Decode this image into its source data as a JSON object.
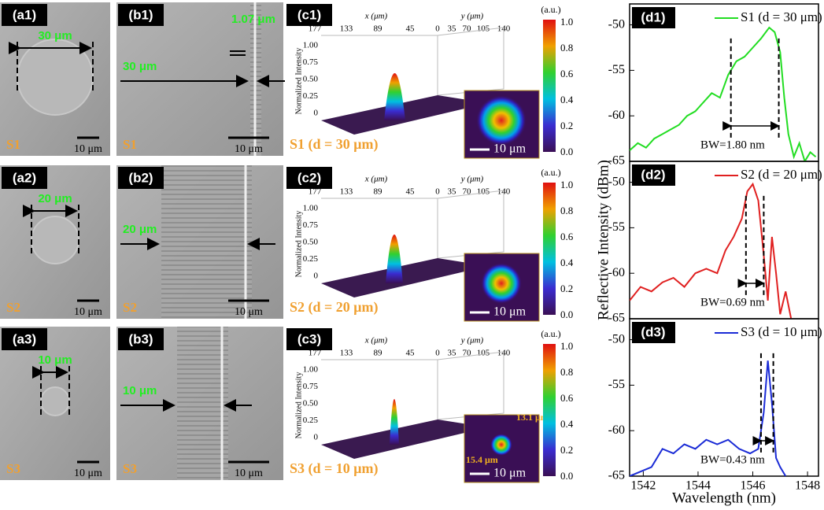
{
  "panels_a": [
    {
      "label": "(a1)",
      "size": "30 μm",
      "sample": "S1",
      "scale": "10 μm"
    },
    {
      "label": "(a2)",
      "size": "20 μm",
      "sample": "S2",
      "scale": "10 μm"
    },
    {
      "label": "(a3)",
      "size": "10 μm",
      "sample": "S3",
      "scale": "10 μm"
    }
  ],
  "panels_b": [
    {
      "label": "(b1)",
      "size": "30 μm",
      "sample": "S1",
      "scale": "10 μm",
      "period": "1.07 μm"
    },
    {
      "label": "(b2)",
      "size": "20 μm",
      "sample": "S2",
      "scale": "10 μm"
    },
    {
      "label": "(b3)",
      "size": "10 μm",
      "sample": "S3",
      "scale": "10 μm"
    }
  ],
  "panels_c": [
    {
      "label": "(c1)",
      "caption": "S1 (d = 30 μm)",
      "inset_scale": "10 μm"
    },
    {
      "label": "(c2)",
      "caption": "S2 (d = 20 μm)",
      "inset_scale": "10 μm"
    },
    {
      "label": "(c3)",
      "caption": "S3 (d = 10 μm)",
      "inset_scale": "10 μm",
      "inset_height": "13.1 μm",
      "inset_width": "15.4 μm"
    }
  ],
  "plot3d": {
    "x_label": "x (μm)",
    "y_label": "y (μm)",
    "z_label": "Normalized Intensity",
    "x_ticks": [
      "177",
      "133",
      "89",
      "45",
      "0"
    ],
    "y_ticks": [
      "35",
      "70",
      "105",
      "140"
    ],
    "z_ticks": [
      "1.00",
      "0.75",
      "0.50",
      "0.25",
      "0"
    ],
    "colorbar_unit": "(a.u.)",
    "colorbar_ticks": [
      "1.0",
      "0.8",
      "0.6",
      "0.4",
      "0.2",
      "0.0"
    ]
  },
  "chart_data": [
    {
      "type": "line",
      "panel_label": "(d1)",
      "annotation": "BW=1.80 nm",
      "y_label": "Reflective Intensity (dBm)",
      "x": [
        1541.5,
        1541.8,
        1542.1,
        1542.4,
        1542.7,
        1543.0,
        1543.3,
        1543.6,
        1543.9,
        1544.2,
        1544.5,
        1544.8,
        1545.1,
        1545.4,
        1545.7,
        1546.0,
        1546.3,
        1546.6,
        1546.8,
        1547.0,
        1547.15,
        1547.3,
        1547.5,
        1547.7,
        1547.9,
        1548.1,
        1548.3
      ],
      "series": [
        {
          "name": "S1 (d = 30 μm)",
          "color": "#22dd22",
          "values": [
            -63.8,
            -63,
            -63.5,
            -62.5,
            -62,
            -61.5,
            -61,
            -60,
            -59.5,
            -58.5,
            -57.5,
            -58,
            -55.5,
            -54,
            -53.5,
            -52.5,
            -51.5,
            -50.3,
            -50.8,
            -53,
            -58,
            -62,
            -64.5,
            -63,
            -65,
            -64,
            -64.5
          ]
        }
      ],
      "xlim": [
        1541.5,
        1548.4
      ],
      "ylim": [
        -65,
        -47.7
      ],
      "yticks": [
        -50,
        -55,
        -60,
        -65
      ]
    },
    {
      "type": "line",
      "panel_label": "(d2)",
      "annotation": "BW=0.69 nm",
      "x": [
        1541.5,
        1541.9,
        1542.3,
        1542.7,
        1543.1,
        1543.5,
        1543.9,
        1544.3,
        1544.7,
        1545.0,
        1545.3,
        1545.6,
        1545.8,
        1546.0,
        1546.2,
        1546.4,
        1546.55,
        1546.7,
        1546.85,
        1547.0,
        1547.2,
        1547.4
      ],
      "series": [
        {
          "name": "S2 (d = 20 μm)",
          "color": "#e02020",
          "values": [
            -63,
            -61.5,
            -62,
            -61,
            -60.5,
            -61.5,
            -60,
            -59.5,
            -60,
            -57.5,
            -56,
            -54,
            -51,
            -50.2,
            -52,
            -58,
            -63,
            -56,
            -60,
            -64.5,
            -62,
            -65
          ]
        }
      ],
      "xlim": [
        1541.5,
        1548.4
      ],
      "ylim": [
        -65,
        -47.7
      ],
      "yticks": [
        -50,
        -55,
        -60,
        -65
      ]
    },
    {
      "type": "line",
      "panel_label": "(d3)",
      "annotation": "BW=0.43 nm",
      "x_label": "Wavelength (nm)",
      "x": [
        1541.5,
        1541.9,
        1542.3,
        1542.7,
        1543.1,
        1543.5,
        1543.9,
        1544.3,
        1544.7,
        1545.1,
        1545.5,
        1545.9,
        1546.2,
        1546.4,
        1546.55,
        1546.7,
        1546.85,
        1547.0,
        1547.2
      ],
      "series": [
        {
          "name": "S3 (d = 10 μm)",
          "color": "#1a2bd6",
          "values": [
            -65,
            -64.5,
            -64,
            -62,
            -62.5,
            -61.5,
            -62,
            -61,
            -61.5,
            -61,
            -62,
            -62.5,
            -62,
            -58,
            -52.3,
            -57,
            -63,
            -64,
            -65
          ]
        }
      ],
      "xlim": [
        1541.5,
        1548.4
      ],
      "ylim": [
        -65,
        -47.7
      ],
      "yticks": [
        -50,
        -55,
        -60,
        -65
      ],
      "xticks": [
        1542,
        1544,
        1546,
        1548
      ]
    }
  ]
}
